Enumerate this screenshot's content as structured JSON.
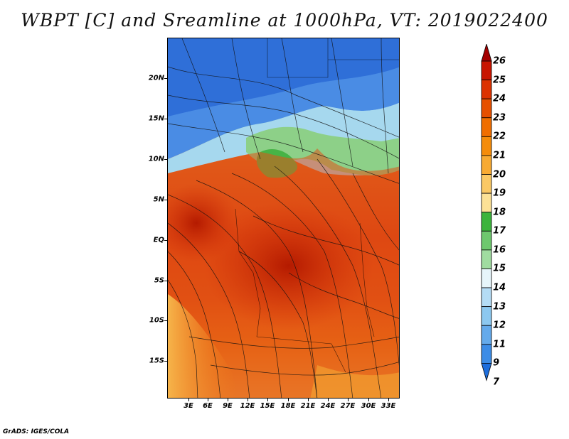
{
  "title": "WBPT [C] and Sreamline at 1000hPa, VT: 2019022400",
  "credit": "GrADS: IGES/COLA",
  "lat_labels": [
    "20N",
    "15N",
    "10N",
    "5N",
    "EQ",
    "5S",
    "10S",
    "15S"
  ],
  "lon_labels": [
    "3E",
    "6E",
    "9E",
    "12E",
    "15E",
    "18E",
    "21E",
    "24E",
    "27E",
    "30E",
    "33E"
  ],
  "colorbar": {
    "labels": [
      "26",
      "25",
      "24",
      "23",
      "22",
      "21",
      "20",
      "19",
      "18",
      "17",
      "16",
      "15",
      "14",
      "13",
      "12",
      "11",
      "9",
      "7"
    ],
    "colors": [
      "#a50000",
      "#c81400",
      "#dc3200",
      "#e65000",
      "#f06e00",
      "#f58c0a",
      "#f8aa32",
      "#fac864",
      "#fce196",
      "#3cb43c",
      "#6ec86e",
      "#a0dca0",
      "#e6f5fa",
      "#b4dcf5",
      "#8cc8f0",
      "#64aaeb",
      "#3c8ce6",
      "#1e6edc"
    ]
  }
}
